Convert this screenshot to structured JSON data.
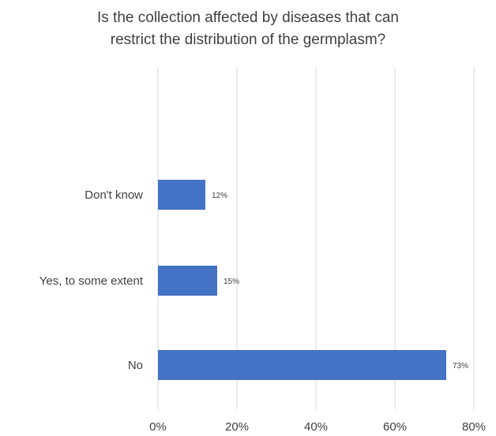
{
  "chart_data": {
    "type": "bar",
    "orientation": "horizontal",
    "title_lines": [
      "Is the collection affected by diseases that can",
      "restrict the distribution of the germplasm?"
    ],
    "categories": [
      "Don't know",
      "Yes, to some extent",
      "No"
    ],
    "values": [
      12,
      15,
      73
    ],
    "value_labels": [
      "12%",
      "15%",
      "73%"
    ],
    "x_ticks": [
      "0%",
      "20%",
      "40%",
      "60%",
      "80%"
    ],
    "xlim": [
      0,
      80
    ],
    "grid": "vertical",
    "legend": "none",
    "bar_color": "#4472c4"
  }
}
